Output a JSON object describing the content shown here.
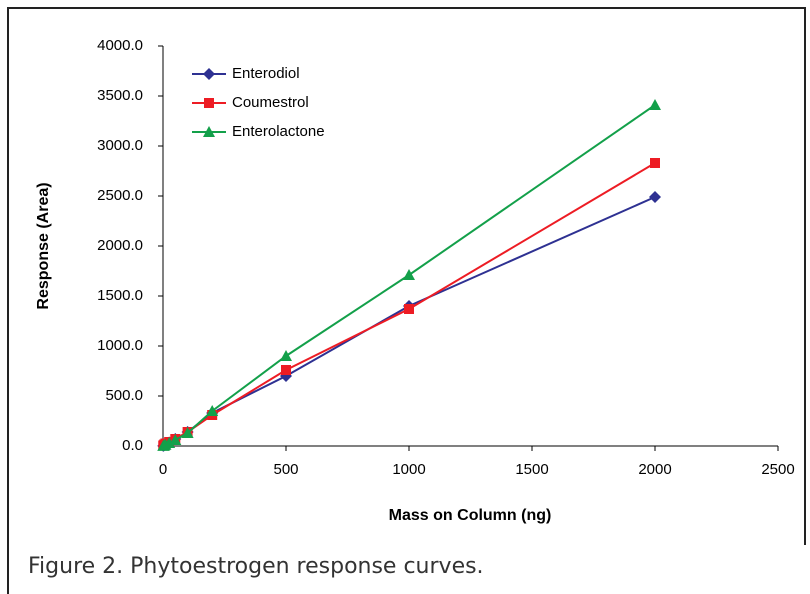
{
  "chart_data": {
    "type": "line",
    "x_label": "Mass on Column (ng)",
    "y_label": "Response (Area)",
    "x": [
      1,
      5,
      10,
      25,
      50,
      100,
      200,
      500,
      1000,
      2000
    ],
    "series": [
      {
        "name": "Enterodiol",
        "color": "#2e3192",
        "marker": "diamond",
        "values": [
          1,
          7,
          14,
          35,
          70,
          140,
          330,
          700,
          1400,
          2490
        ]
      },
      {
        "name": "Coumestrol",
        "color": "#ed1c24",
        "marker": "square",
        "values": [
          5,
          15,
          25,
          40,
          70,
          140,
          310,
          760,
          1370,
          2830
        ]
      },
      {
        "name": "Enterolactone",
        "color": "#13a04a",
        "marker": "triangle",
        "values": [
          1,
          5,
          12,
          30,
          60,
          130,
          350,
          900,
          1710,
          3410
        ]
      }
    ],
    "xlim": [
      0,
      2500
    ],
    "xticks": [
      0,
      500,
      1000,
      1500,
      2000,
      2500
    ],
    "ylim": [
      0,
      4000
    ],
    "yticks": [
      {
        "value": 0,
        "label": "0.0"
      },
      {
        "value": 500,
        "label": "500.0"
      },
      {
        "value": 1000,
        "label": "1000.0"
      },
      {
        "value": 1500,
        "label": "1500.0"
      },
      {
        "value": 2000,
        "label": "2000.0"
      },
      {
        "value": 2500,
        "label": "2500.0"
      },
      {
        "value": 3000,
        "label": "3000.0"
      },
      {
        "value": 3500,
        "label": "3500.0"
      },
      {
        "value": 4000,
        "label": "4000.0"
      }
    ],
    "legend": "upper-left"
  },
  "caption": "Figure 2. Phytoestrogen response curves."
}
